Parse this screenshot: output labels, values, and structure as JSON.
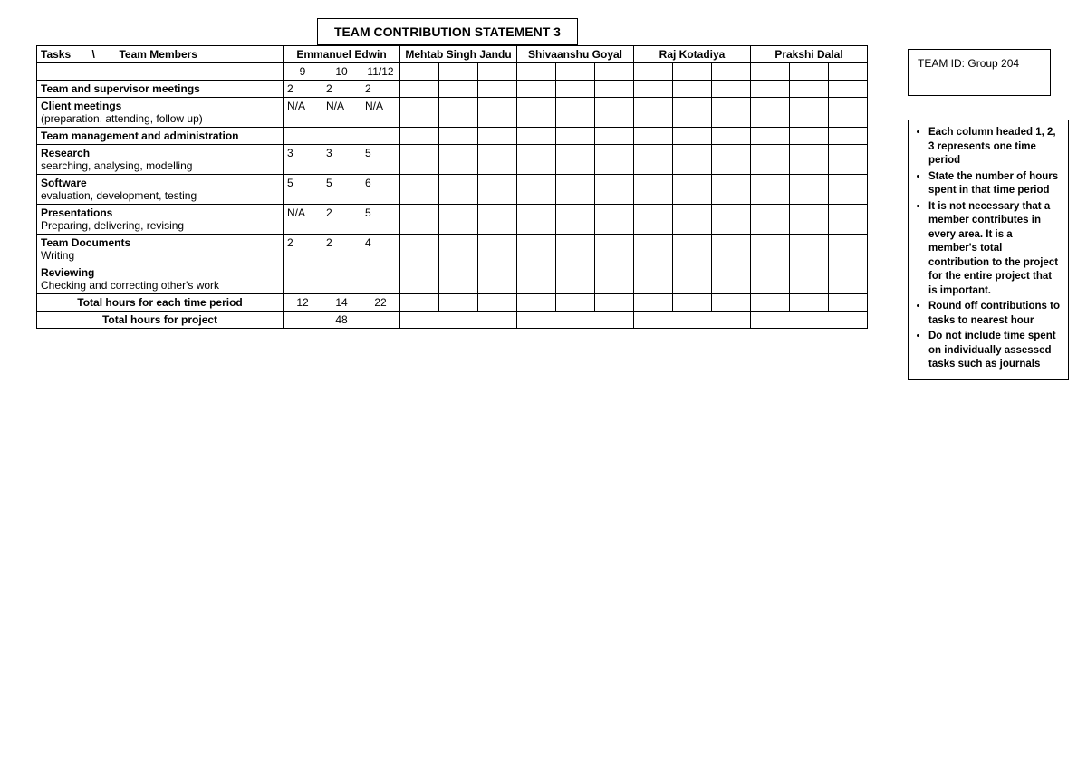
{
  "title": "TEAM CONTRIBUTION STATEMENT 3",
  "team_id_label": "TEAM ID:",
  "team_id_value": "Group 204",
  "header": {
    "tasks_label": "Tasks       \\         Team Members",
    "members": [
      "Emmanuel Edwin",
      "Mehtab Singh Jandu",
      "Shivaanshu Goyal",
      "Raj Kotadiya",
      "Prakshi Dalal"
    ]
  },
  "periods": [
    "9",
    "10",
    "11/12"
  ],
  "rows": [
    {
      "title_bold": "Team and supervisor meetings",
      "title_sub": "",
      "vals": [
        "2",
        "2",
        "2"
      ],
      "tall": true
    },
    {
      "title_bold": "Client meetings",
      "title_sub": "(preparation, attending, follow up)",
      "vals": [
        "N/A",
        "N/A",
        "N/A"
      ],
      "tall": true
    },
    {
      "title_bold": "Team management and administration",
      "title_sub": "",
      "vals": [
        "",
        "",
        ""
      ],
      "tall": true
    },
    {
      "title_bold": "Research",
      "title_sub": "searching, analysing, modelling",
      "vals": [
        "3",
        "3",
        "5"
      ],
      "tall": true
    },
    {
      "title_bold": "Software",
      "title_sub": "evaluation, development, testing",
      "vals": [
        "5",
        "5",
        "6"
      ],
      "tall": true
    },
    {
      "title_bold": "Presentations",
      "title_sub": "Preparing, delivering, revising",
      "vals": [
        "N/A",
        "2",
        "5"
      ],
      "tall": true
    },
    {
      "title_bold": "Team Documents",
      "title_sub": "Writing",
      "vals": [
        "2",
        "2",
        "4"
      ],
      "tall": true
    },
    {
      "title_bold": "Reviewing",
      "title_sub": "Checking and correcting other's work",
      "vals": [
        "",
        "",
        ""
      ],
      "tall": true
    }
  ],
  "total_period": {
    "label": "Total hours for each time period",
    "vals": [
      "12",
      "14",
      "22"
    ]
  },
  "total_project": {
    "label": "Total hours for project",
    "vals": [
      "48",
      "",
      "",
      "",
      ""
    ]
  },
  "notes": [
    "Each column headed 1, 2, 3 represents one time period",
    "State the number of hours spent in that time period",
    "It is not necessary that a member contributes in every area. It is a member's total contribution to the project for the entire project that is important.",
    "Round off contributions to tasks to nearest hour",
    "Do not include time spent on individually assessed tasks such as journals"
  ],
  "layout": {
    "sub_cols_per_member": 3,
    "colors": {
      "border": "#000000",
      "background": "#ffffff",
      "text": "#000000"
    }
  }
}
